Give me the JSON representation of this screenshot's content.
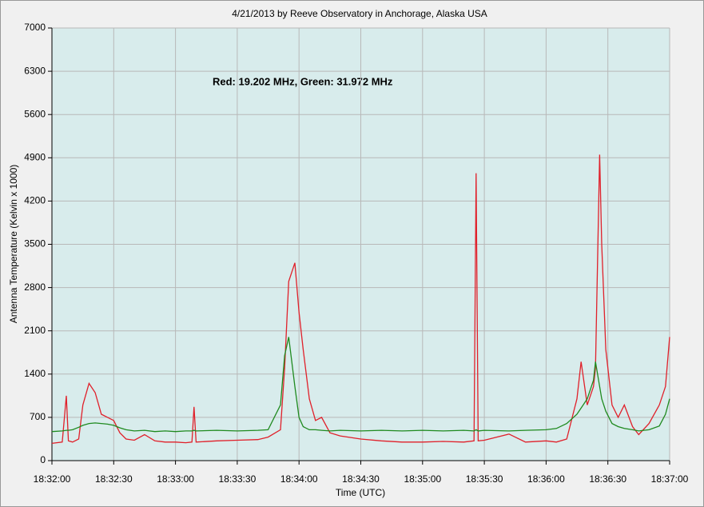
{
  "chart_data": {
    "type": "line",
    "title": "4/21/2013  by  Reeve Observatory  in  Anchorage, Alaska  USA",
    "annotation": "Red: 19.202 MHz, Green: 31.972 MHz",
    "xlabel": "Time (UTC)",
    "ylabel": "Antenna Temperature (Kelvin x 1000)",
    "x": [
      "18:32:00",
      "18:32:05",
      "18:32:07",
      "18:32:08",
      "18:32:10",
      "18:32:13",
      "18:32:15",
      "18:32:18",
      "18:32:21",
      "18:32:24",
      "18:32:27",
      "18:32:30",
      "18:32:33",
      "18:32:36",
      "18:32:40",
      "18:32:45",
      "18:32:50",
      "18:32:55",
      "18:33:00",
      "18:33:05",
      "18:33:08",
      "18:33:09",
      "18:33:10",
      "18:33:20",
      "18:33:30",
      "18:33:40",
      "18:33:45",
      "18:33:51",
      "18:33:53",
      "18:33:55",
      "18:33:58",
      "18:34:00",
      "18:34:02",
      "18:34:05",
      "18:34:08",
      "18:34:11",
      "18:34:15",
      "18:34:20",
      "18:34:30",
      "18:34:40",
      "18:34:50",
      "18:35:00",
      "18:35:10",
      "18:35:20",
      "18:35:25",
      "18:35:26",
      "18:35:27",
      "18:35:30",
      "18:35:42",
      "18:35:50",
      "18:36:00",
      "18:36:05",
      "18:36:10",
      "18:36:15",
      "18:36:17",
      "18:36:20",
      "18:36:23",
      "18:36:24",
      "18:36:26",
      "18:36:27",
      "18:36:29",
      "18:36:32",
      "18:36:35",
      "18:36:38",
      "18:36:42",
      "18:36:45",
      "18:36:50",
      "18:36:55",
      "18:36:58",
      "18:37:00"
    ],
    "series": [
      {
        "name": "Red",
        "color": "#e0202a",
        "values": [
          280,
          300,
          1050,
          320,
          300,
          350,
          900,
          1250,
          1100,
          750,
          700,
          650,
          450,
          350,
          330,
          420,
          320,
          300,
          300,
          290,
          300,
          870,
          300,
          320,
          330,
          340,
          380,
          500,
          1500,
          2900,
          3200,
          2400,
          1800,
          1000,
          650,
          700,
          450,
          400,
          350,
          320,
          300,
          300,
          310,
          300,
          320,
          4650,
          320,
          330,
          430,
          300,
          320,
          300,
          350,
          1000,
          1600,
          900,
          1200,
          1500,
          4950,
          3500,
          1800,
          900,
          700,
          900,
          550,
          420,
          600,
          900,
          1200,
          2000
        ]
      },
      {
        "name": "Green",
        "color": "#1f8a1f",
        "values": [
          470,
          480,
          490,
          490,
          500,
          540,
          570,
          600,
          610,
          600,
          590,
          570,
          530,
          500,
          480,
          490,
          470,
          480,
          470,
          480,
          480,
          490,
          480,
          490,
          480,
          490,
          500,
          900,
          1700,
          2000,
          1200,
          700,
          550,
          500,
          500,
          490,
          480,
          490,
          480,
          490,
          480,
          490,
          480,
          490,
          480,
          500,
          480,
          490,
          480,
          490,
          500,
          520,
          600,
          750,
          850,
          1000,
          1300,
          1600,
          1200,
          1000,
          800,
          600,
          550,
          520,
          500,
          480,
          500,
          560,
          750,
          1000
        ]
      }
    ],
    "xlim": [
      "18:32:00",
      "18:37:00"
    ],
    "xticks": [
      "18:32:00",
      "18:32:30",
      "18:33:00",
      "18:33:30",
      "18:34:00",
      "18:34:30",
      "18:35:00",
      "18:35:30",
      "18:36:00",
      "18:36:30",
      "18:37:00"
    ],
    "ylim": [
      0,
      7000
    ],
    "yticks": [
      0,
      700,
      1400,
      2100,
      2800,
      3500,
      4200,
      4900,
      5600,
      6300,
      7000
    ],
    "grid": true
  }
}
